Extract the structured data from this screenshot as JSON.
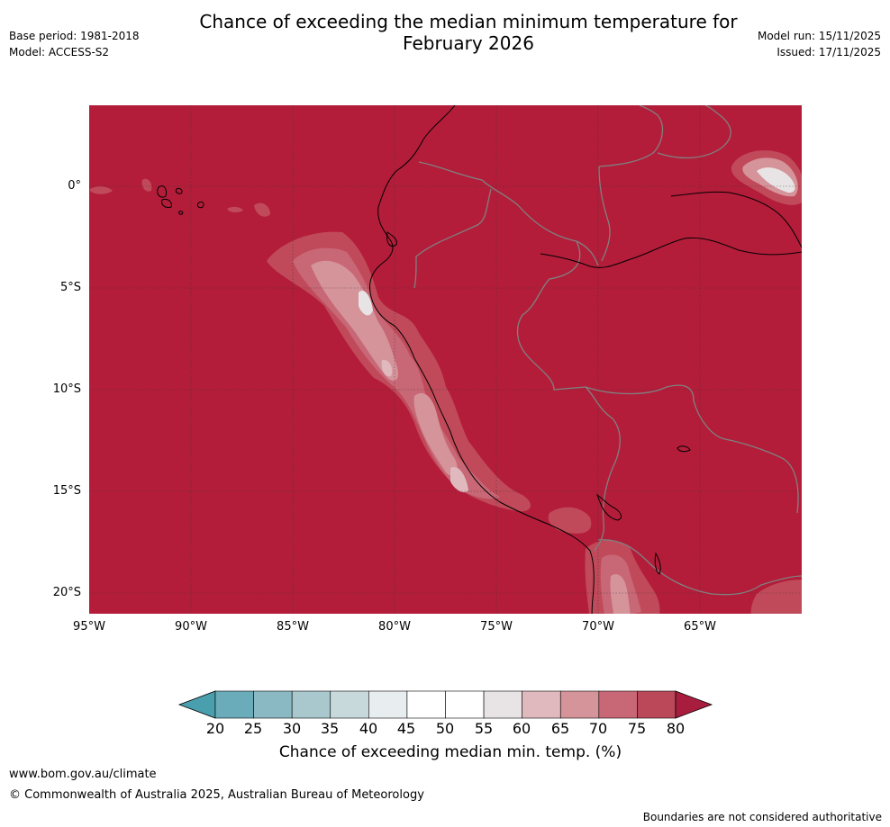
{
  "header": {
    "title_line1": "Chance of exceeding the median minimum temperature for",
    "title_line2": "February 2026",
    "base_period": "Base period: 1981-2018",
    "model": "Model: ACCESS-S2",
    "model_run": "Model run: 15/11/2025",
    "issued": "Issued: 17/11/2025"
  },
  "map": {
    "lat_labels": [
      "0°",
      "5°S",
      "10°S",
      "15°S",
      "20°S"
    ],
    "lon_labels": [
      "95°W",
      "90°W",
      "85°W",
      "80°W",
      "75°W",
      "70°W",
      "65°W"
    ],
    "background_color": "#b31d3a",
    "boundary_color": "#808080",
    "coastline_color": "#000000"
  },
  "colorbar": {
    "title": "Chance of exceeding median min. temp. (%)",
    "ticks": [
      "20",
      "25",
      "30",
      "35",
      "40",
      "45",
      "50",
      "55",
      "60",
      "65",
      "70",
      "75",
      "80"
    ],
    "low_extend_color": "#4a9fae",
    "high_extend_color": "#a81c3e",
    "colors": [
      "#6aacb9",
      "#8ab9c3",
      "#a9c8cd",
      "#c8d9dc",
      "#e8eeef",
      "#ffffff",
      "#ffffff",
      "#e8e4e5",
      "#dfb9bd",
      "#d5939a",
      "#c86776",
      "#bb4858"
    ]
  },
  "footer": {
    "url": "www.bom.gov.au/climate",
    "copyright": "© Commonwealth of Australia 2025, Australian Bureau of Meteorology",
    "boundaries_note": "Boundaries are not considered authoritative"
  }
}
